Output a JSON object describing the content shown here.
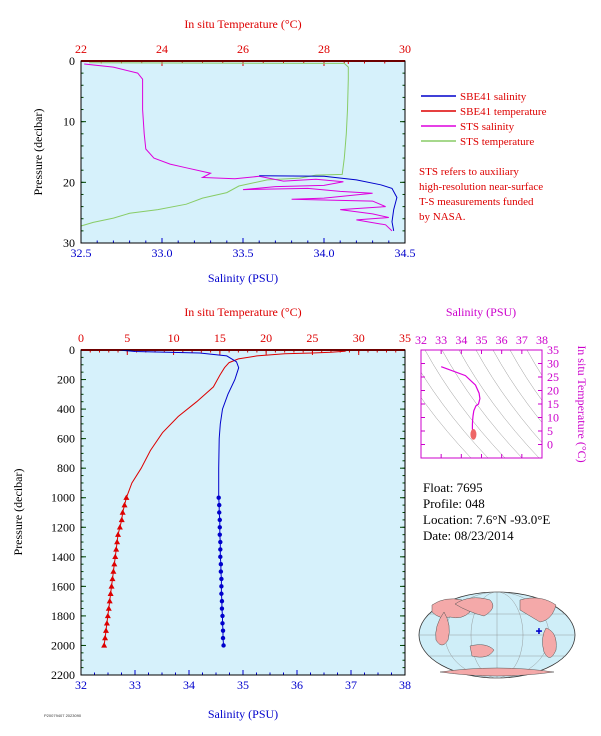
{
  "colors": {
    "plot_bg": "#d6f1fb",
    "salinity": "#0000cc",
    "temperature": "#dd0000",
    "sts_salinity": "#dd00dd",
    "sts_temperature": "#88cc66",
    "frame_magenta": "#cc00cc",
    "map_water": "#cfeef8",
    "map_land": "#f4a9a9"
  },
  "footer": {
    "tiny": "P20079407 2023090"
  },
  "float_info": {
    "float": "Float: 7695",
    "profile": "Profile: 048",
    "location": "Location: 7.6°N -93.0°E",
    "date": "Date: 08/23/2014"
  },
  "note_lines": [
    "STS refers to auxiliary",
    "high-resolution near-surface",
    "T-S measurements funded",
    "by NASA."
  ],
  "chart_data": [
    {
      "id": "near_surface",
      "type": "line",
      "top_label": "In situ Temperature (°C)",
      "xlabel": "Salinity (PSU)",
      "ylabel": "Pressure (decibar)",
      "xlim": [
        32.5,
        34.5
      ],
      "x_ticks": [
        "32.5",
        "33.0",
        "33.5",
        "34.0",
        "34.5"
      ],
      "top_xlim": [
        22,
        30
      ],
      "top_ticks": [
        "22",
        "24",
        "26",
        "28",
        "30"
      ],
      "ylim": [
        30,
        0
      ],
      "y_ticks": [
        "0",
        "10",
        "20",
        "30"
      ],
      "legend": [
        {
          "label": "SBE41 salinity",
          "color": "#0000cc"
        },
        {
          "label": "SBE41 temperature",
          "color": "#dd0000"
        },
        {
          "label": "STS salinity",
          "color": "#dd00dd"
        },
        {
          "label": "STS temperature",
          "color": "#88cc66"
        }
      ],
      "series": [
        {
          "name": "SBE41 temperature",
          "axis": "top",
          "color": "#dd0000",
          "points": [
            [
              22.1,
              0
            ],
            [
              28.6,
              0
            ],
            [
              28.6,
              0.5
            ]
          ]
        },
        {
          "name": "STS temperature",
          "axis": "top",
          "color": "#88cc66",
          "points": [
            [
              22.2,
              0.3
            ],
            [
              28.5,
              0.4
            ],
            [
              28.6,
              1
            ],
            [
              28.6,
              3
            ],
            [
              28.58,
              8
            ],
            [
              28.55,
              12
            ],
            [
              28.5,
              16
            ],
            [
              28.45,
              18.7
            ],
            [
              27.8,
              18.8
            ],
            [
              27.4,
              19.3
            ],
            [
              26.6,
              19.6
            ],
            [
              25.9,
              20.6
            ],
            [
              25.6,
              21.7
            ],
            [
              25.0,
              22.6
            ],
            [
              24.6,
              23.6
            ],
            [
              23.9,
              24.5
            ],
            [
              23.2,
              25.1
            ],
            [
              22.8,
              25.9
            ],
            [
              22.3,
              26.6
            ],
            [
              22.0,
              27.2
            ]
          ]
        },
        {
          "name": "STS salinity",
          "axis": "bottom",
          "color": "#dd00dd",
          "points": [
            [
              32.52,
              0.5
            ],
            [
              32.7,
              1
            ],
            [
              32.85,
              2
            ],
            [
              32.88,
              3
            ],
            [
              32.88,
              8
            ],
            [
              32.89,
              12
            ],
            [
              32.9,
              14.5
            ],
            [
              32.95,
              16
            ],
            [
              33.05,
              17
            ],
            [
              33.15,
              17.6
            ],
            [
              33.3,
              18.5
            ],
            [
              33.25,
              19.2
            ],
            [
              33.45,
              19.4
            ],
            [
              33.6,
              19.0
            ],
            [
              33.75,
              19.8
            ],
            [
              33.95,
              19.5
            ],
            [
              34.12,
              19.9
            ],
            [
              34.0,
              20.5
            ],
            [
              33.7,
              20.7
            ],
            [
              33.5,
              21.2
            ],
            [
              33.9,
              21.0
            ],
            [
              34.1,
              21.5
            ],
            [
              34.3,
              21.8
            ],
            [
              34.0,
              22.6
            ],
            [
              33.8,
              22.8
            ],
            [
              34.3,
              23.1
            ],
            [
              34.38,
              24.0
            ],
            [
              34.1,
              24.5
            ],
            [
              34.3,
              25.2
            ],
            [
              34.4,
              25.8
            ],
            [
              34.2,
              26.2
            ],
            [
              34.38,
              27.0
            ],
            [
              34.42,
              28.0
            ]
          ]
        },
        {
          "name": "SBE41 salinity",
          "axis": "bottom",
          "color": "#0000cc",
          "points": [
            [
              33.6,
              18.9
            ],
            [
              34.0,
              19.0
            ],
            [
              34.2,
              19.6
            ],
            [
              34.35,
              20.4
            ],
            [
              34.42,
              21.0
            ],
            [
              34.45,
              22.5
            ],
            [
              34.43,
              24.5
            ],
            [
              34.42,
              26.5
            ],
            [
              34.43,
              28.0
            ]
          ]
        }
      ]
    },
    {
      "id": "full_profile",
      "type": "line",
      "top_label": "In situ Temperature (°C)",
      "xlabel": "Salinity (PSU)",
      "ylabel": "Pressure (decibar)",
      "xlim": [
        32,
        38
      ],
      "x_ticks": [
        "32",
        "33",
        "34",
        "35",
        "36",
        "37",
        "38"
      ],
      "top_xlim": [
        0,
        35
      ],
      "top_ticks": [
        "0",
        "5",
        "10",
        "15",
        "20",
        "25",
        "30",
        "35"
      ],
      "ylim": [
        2200,
        0
      ],
      "y_ticks": [
        "0",
        "200",
        "400",
        "600",
        "800",
        "1000",
        "1200",
        "1400",
        "1600",
        "1800",
        "2000",
        "2200"
      ],
      "series": [
        {
          "name": "Temperature",
          "axis": "top",
          "color": "#dd0000",
          "markers": "triangle",
          "marker_from": 1000,
          "points": [
            [
              28.8,
              0
            ],
            [
              28.5,
              8
            ],
            [
              27.0,
              15
            ],
            [
              25.0,
              20
            ],
            [
              22.0,
              25
            ],
            [
              19.0,
              40
            ],
            [
              17.0,
              60
            ],
            [
              16.0,
              85
            ],
            [
              15.5,
              120
            ],
            [
              15.0,
              170
            ],
            [
              14.3,
              250
            ],
            [
              12.5,
              350
            ],
            [
              10.5,
              450
            ],
            [
              8.8,
              560
            ],
            [
              7.5,
              680
            ],
            [
              6.5,
              800
            ],
            [
              5.5,
              900
            ],
            [
              4.9,
              1000
            ],
            [
              4.7,
              1050
            ],
            [
              4.5,
              1100
            ],
            [
              4.4,
              1150
            ],
            [
              4.2,
              1200
            ],
            [
              4.0,
              1250
            ],
            [
              3.9,
              1300
            ],
            [
              3.8,
              1350
            ],
            [
              3.7,
              1400
            ],
            [
              3.6,
              1450
            ],
            [
              3.5,
              1500
            ],
            [
              3.4,
              1550
            ],
            [
              3.3,
              1600
            ],
            [
              3.2,
              1650
            ],
            [
              3.1,
              1700
            ],
            [
              3.0,
              1750
            ],
            [
              2.9,
              1800
            ],
            [
              2.8,
              1850
            ],
            [
              2.7,
              1900
            ],
            [
              2.6,
              1950
            ],
            [
              2.5,
              2000
            ]
          ]
        },
        {
          "name": "Salinity",
          "axis": "bottom",
          "color": "#0000cc",
          "markers": "dot",
          "marker_from": 1000,
          "points": [
            [
              32.7,
              0
            ],
            [
              33.0,
              10
            ],
            [
              34.2,
              20
            ],
            [
              34.7,
              40
            ],
            [
              34.88,
              80
            ],
            [
              34.92,
              120
            ],
            [
              34.85,
              200
            ],
            [
              34.72,
              300
            ],
            [
              34.62,
              400
            ],
            [
              34.58,
              500
            ],
            [
              34.56,
              600
            ],
            [
              34.55,
              800
            ],
            [
              34.55,
              1000
            ],
            [
              34.56,
              1050
            ],
            [
              34.56,
              1100
            ],
            [
              34.57,
              1150
            ],
            [
              34.57,
              1200
            ],
            [
              34.57,
              1250
            ],
            [
              34.58,
              1300
            ],
            [
              34.58,
              1350
            ],
            [
              34.58,
              1400
            ],
            [
              34.59,
              1450
            ],
            [
              34.59,
              1500
            ],
            [
              34.6,
              1550
            ],
            [
              34.6,
              1600
            ],
            [
              34.6,
              1650
            ],
            [
              34.61,
              1700
            ],
            [
              34.61,
              1750
            ],
            [
              34.62,
              1800
            ],
            [
              34.62,
              1850
            ],
            [
              34.63,
              1900
            ],
            [
              34.63,
              1950
            ],
            [
              34.64,
              2000
            ]
          ]
        }
      ]
    },
    {
      "id": "ts_diagram",
      "type": "scatter",
      "top_label": "Salinity (PSU)",
      "right_label": "In situ Temperature (°C)",
      "xlim": [
        32,
        38
      ],
      "x_ticks": [
        "32",
        "33",
        "34",
        "35",
        "36",
        "37",
        "38"
      ],
      "ylim": [
        -5,
        35
      ],
      "y_ticks": [
        "0",
        "5",
        "10",
        "15",
        "20",
        "25",
        "30",
        "35"
      ],
      "series": [
        {
          "name": "T-S",
          "color": "#dd00dd",
          "points": [
            [
              33.0,
              28.8
            ],
            [
              34.2,
              25.5
            ],
            [
              34.7,
              22
            ],
            [
              34.88,
              19
            ],
            [
              34.92,
              17
            ],
            [
              34.85,
              15
            ],
            [
              34.72,
              14.3
            ],
            [
              34.62,
              12.5
            ],
            [
              34.58,
              10.5
            ],
            [
              34.56,
              8.8
            ],
            [
              34.55,
              7.5
            ],
            [
              34.55,
              6.5
            ],
            [
              34.55,
              5.5
            ]
          ]
        },
        {
          "name": "deep",
          "color": "#ee6666",
          "cluster": [
            34.55,
            34.65,
            2.5,
            5.0
          ]
        }
      ]
    }
  ]
}
